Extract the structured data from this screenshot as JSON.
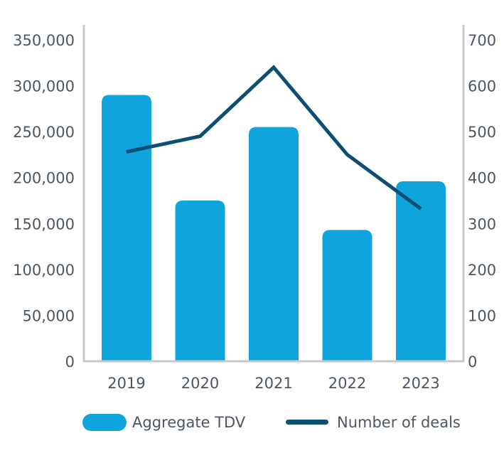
{
  "chart_data": {
    "type": "bar+line",
    "title": "",
    "xlabel": "",
    "ylabel": "",
    "y2label": "",
    "categories": [
      "2019",
      "2020",
      "2021",
      "2022",
      "2023"
    ],
    "series": [
      {
        "name": "Aggregate TDV",
        "type": "bar",
        "axis": "left",
        "color": "#0fa5dc",
        "values": [
          290000,
          175000,
          255000,
          143000,
          196000
        ]
      },
      {
        "name": "Number of deals",
        "type": "line",
        "axis": "right",
        "color": "#0d4f73",
        "values": [
          456,
          490,
          640,
          450,
          332
        ]
      }
    ],
    "ylim": [
      0,
      350000
    ],
    "y2lim": [
      0,
      700
    ],
    "y_ticks": [
      "0",
      "50,000",
      "100,000",
      "150,000",
      "200,000",
      "250,000",
      "300,000",
      "350,000"
    ],
    "y2_ticks": [
      "0",
      "100",
      "200",
      "300",
      "400",
      "500",
      "600",
      "700"
    ],
    "legend": {
      "position": "bottom",
      "items": [
        "Aggregate TDV",
        "Number of deals"
      ]
    },
    "axis_color": "#c8c8c8",
    "grid": false
  }
}
